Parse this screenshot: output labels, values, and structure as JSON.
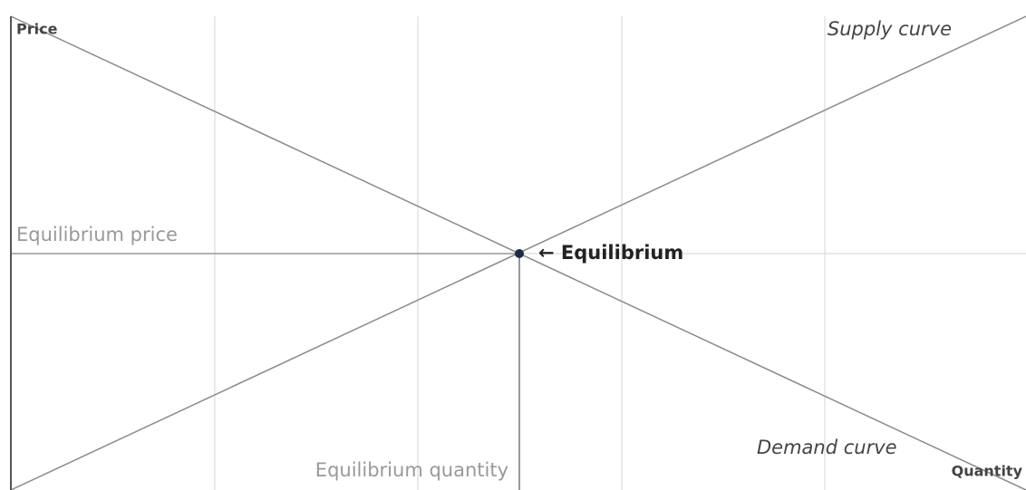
{
  "axes": {
    "y_label": "Price",
    "x_label": "Quantity"
  },
  "curves": {
    "supply": "Supply curve",
    "demand": "Demand curve"
  },
  "equilibrium": {
    "label": "← Equilibrium",
    "price": "Equilibrium price",
    "quantity": "Equilibrium quantity"
  }
}
